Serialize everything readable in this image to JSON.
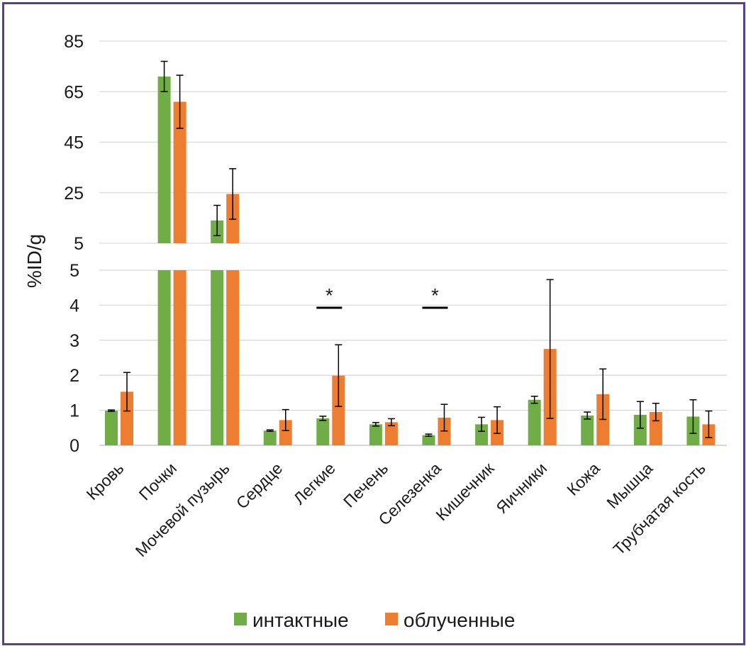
{
  "chart_data": {
    "type": "bar",
    "ylabel": "%ID/g",
    "categories": [
      "Кровь",
      "Почки",
      "Мочевой пузырь",
      "Сердце",
      "Легкие",
      "Печень",
      "Селезенка",
      "Кишечник",
      "Яичники",
      "Кожа",
      "Мышца",
      "Трубчатая кость"
    ],
    "series": [
      {
        "name": "интактные",
        "color": "#70ad47",
        "values": [
          0.99,
          71.0,
          14.0,
          0.42,
          0.77,
          0.6,
          0.29,
          0.6,
          1.3,
          0.85,
          0.87,
          0.82
        ],
        "errors": [
          0.02,
          6.0,
          6.0,
          0.02,
          0.06,
          0.05,
          0.03,
          0.2,
          0.1,
          0.1,
          0.38,
          0.48
        ]
      },
      {
        "name": "облученные",
        "color": "#ed7d31",
        "values": [
          1.53,
          61.0,
          24.5,
          0.72,
          1.99,
          0.66,
          0.79,
          0.72,
          2.75,
          1.46,
          0.95,
          0.6
        ],
        "errors": [
          0.55,
          10.5,
          10.0,
          0.3,
          0.88,
          0.1,
          0.38,
          0.38,
          1.98,
          0.72,
          0.25,
          0.38
        ]
      }
    ],
    "axis_bottom": {
      "range": [
        0,
        5
      ],
      "ticks": [
        "0",
        "1",
        "2",
        "3",
        "4",
        "5"
      ]
    },
    "axis_top": {
      "range": [
        5,
        85
      ],
      "ticks": [
        "5",
        "25",
        "45",
        "65",
        "85"
      ]
    },
    "annotations": [
      {
        "category": "Легкие",
        "text": "*"
      },
      {
        "category": "Селезенка",
        "text": "*"
      }
    ],
    "legend": {
      "position": "bottom",
      "items": [
        "интактные",
        "облученные"
      ]
    },
    "grid": true
  }
}
